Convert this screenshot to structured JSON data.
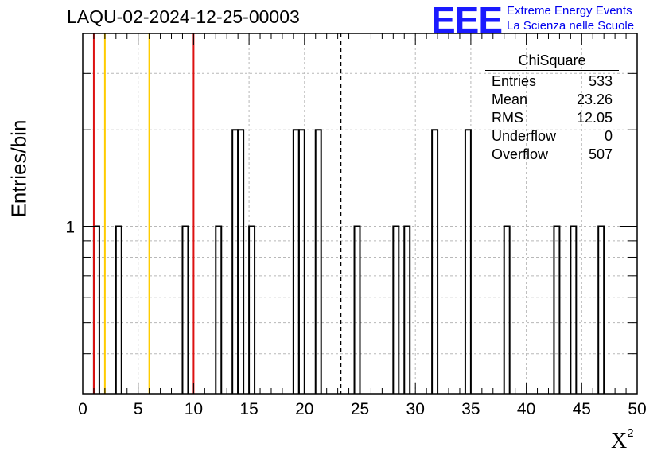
{
  "title": "LAQU-02-2024-12-25-00003",
  "logo": {
    "mark": "EEE",
    "line1": "Extreme Energy Events",
    "line2": "La Scienza nelle Scuole"
  },
  "stats": {
    "name": "ChiSquare",
    "rows": [
      {
        "label": "Entries",
        "value": "533"
      },
      {
        "label": "Mean",
        "value": "23.26"
      },
      {
        "label": "RMS",
        "value": "12.05"
      },
      {
        "label": "Underflow",
        "value": "0"
      },
      {
        "label": "Overflow",
        "value": "507"
      }
    ]
  },
  "chart_data": {
    "type": "bar",
    "title": "LAQU-02-2024-12-25-00003",
    "xlabel": "X",
    "xlabel_superscript": "2",
    "ylabel": "Entries/bin",
    "xlim": [
      0,
      50
    ],
    "ylog": true,
    "ylim": [
      0.3,
      4.0
    ],
    "grid": true,
    "x_ticks": [
      "0",
      "5",
      "10",
      "15",
      "20",
      "25",
      "30",
      "35",
      "40",
      "45",
      "50"
    ],
    "y_ticks": [
      "1"
    ],
    "bin_width": 0.5,
    "bins": [
      {
        "x0": 1.0,
        "value": 1
      },
      {
        "x0": 3.0,
        "value": 1
      },
      {
        "x0": 9.0,
        "value": 1
      },
      {
        "x0": 12.0,
        "value": 1
      },
      {
        "x0": 13.5,
        "value": 2
      },
      {
        "x0": 14.0,
        "value": 2
      },
      {
        "x0": 15.0,
        "value": 1
      },
      {
        "x0": 19.0,
        "value": 2
      },
      {
        "x0": 19.5,
        "value": 2
      },
      {
        "x0": 21.0,
        "value": 2
      },
      {
        "x0": 24.5,
        "value": 1
      },
      {
        "x0": 28.0,
        "value": 1
      },
      {
        "x0": 29.0,
        "value": 1
      },
      {
        "x0": 31.5,
        "value": 2
      },
      {
        "x0": 34.5,
        "value": 2
      },
      {
        "x0": 38.0,
        "value": 1
      },
      {
        "x0": 42.5,
        "value": 1
      },
      {
        "x0": 44.0,
        "value": 1
      },
      {
        "x0": 46.5,
        "value": 1
      }
    ],
    "reference_lines": [
      {
        "x": 1.0,
        "color": "#dd1111",
        "style": "solid"
      },
      {
        "x": 2.0,
        "color": "#ffcc00",
        "style": "solid"
      },
      {
        "x": 6.0,
        "color": "#ffcc00",
        "style": "solid"
      },
      {
        "x": 10.0,
        "color": "#dd1111",
        "style": "solid"
      },
      {
        "x": 23.26,
        "color": "#000000",
        "style": "dashed"
      }
    ]
  }
}
